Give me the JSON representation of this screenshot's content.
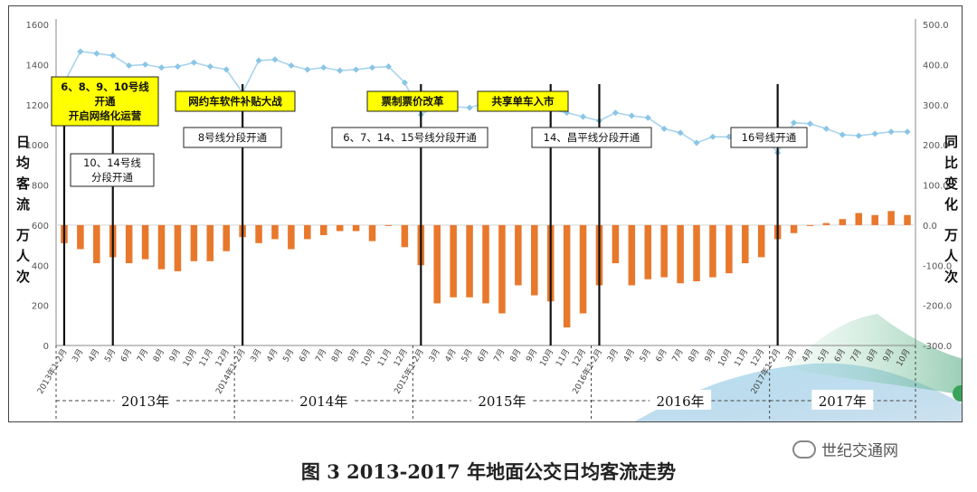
{
  "caption": "图 3 2013-2017 年地面公交日均客流走势",
  "watermark": "世纪交通网",
  "chart_data": {
    "type": "bar+line",
    "ylabel_left": [
      "日",
      "均",
      "客",
      "流",
      "万",
      "人",
      "次"
    ],
    "ylabel_right": [
      "同",
      "比",
      "变",
      "化",
      "万",
      "人",
      "次"
    ],
    "y_left_ticks": [
      "0",
      "200",
      "400",
      "600",
      "800",
      "1000",
      "1200",
      "1400",
      "1600"
    ],
    "y_left_range": [
      0,
      1600
    ],
    "y_right_ticks": [
      "-300.0",
      "-200.0",
      "-100.0",
      "0.0",
      "100.0",
      "200.0",
      "300.0",
      "400.0",
      "500.0"
    ],
    "y_right_range": [
      -300,
      500
    ],
    "x_labels": [
      "2013年1-2月",
      "3月",
      "4月",
      "5月",
      "6月",
      "7月",
      "8月",
      "9月",
      "10月",
      "11月",
      "12月",
      "2014年1-2月",
      "3月",
      "4月",
      "5月",
      "6月",
      "7月",
      "8月",
      "9月",
      "10月",
      "11月",
      "12月",
      "2015年1-2月",
      "3月",
      "4月",
      "5月",
      "6月",
      "7月",
      "8月",
      "9月",
      "10月",
      "11月",
      "12月",
      "2016年1-2月",
      "3月",
      "4月",
      "5月",
      "6月",
      "7月",
      "8月",
      "9月",
      "10月",
      "11月",
      "12月",
      "2017年1-2月",
      "3月",
      "4月",
      "5月",
      "6月",
      "7月",
      "8月",
      "9月",
      "10月"
    ],
    "years": [
      "2013年",
      "2014年",
      "2015年",
      "2016年",
      "2017年"
    ],
    "daily_ridership": [
      1310,
      1465,
      1455,
      1445,
      1395,
      1400,
      1385,
      1390,
      1410,
      1390,
      1375,
      1260,
      1420,
      1425,
      1395,
      1375,
      1385,
      1370,
      1375,
      1385,
      1390,
      1310,
      1150,
      1200,
      1190,
      1185,
      1210,
      1205,
      1190,
      1180,
      1175,
      1160,
      1140,
      1120,
      1160,
      1145,
      1135,
      1080,
      1060,
      1010,
      1040,
      1040,
      1050,
      1060,
      960,
      1110,
      1105,
      1080,
      1050,
      1045,
      1055,
      1065,
      1065
    ],
    "yoy_change": [
      -45,
      -60,
      -95,
      -80,
      -95,
      -85,
      -110,
      -115,
      -90,
      -90,
      -65,
      -30,
      -45,
      -35,
      -60,
      -35,
      -25,
      -15,
      -15,
      -40,
      -2,
      -55,
      -100,
      -195,
      -180,
      -180,
      -195,
      -220,
      -150,
      -175,
      -190,
      -255,
      -220,
      -150,
      -95,
      -150,
      -135,
      -130,
      -145,
      -140,
      -130,
      -120,
      -95,
      -80,
      -35,
      -20,
      -2,
      5,
      15,
      30,
      25,
      35,
      25
    ],
    "annotations": [
      {
        "idx": 0,
        "lines": [
          "6、8、9、10号线",
          "开通",
          "开启网络化运营"
        ],
        "style": "yellow"
      },
      {
        "idx": 3,
        "lines": [
          "10、14号线",
          "分段开通"
        ],
        "style": "white"
      },
      {
        "idx": 11,
        "lines": [
          "网约车软件补贴大战"
        ],
        "style": "yellow"
      },
      {
        "idx": 11,
        "lines": [
          "8号线分段开通"
        ],
        "style": "white"
      },
      {
        "idx": 22,
        "lines": [
          "票制票价改革"
        ],
        "style": "yellow"
      },
      {
        "idx": 22,
        "lines": [
          "6、7、14、15号线分段开通"
        ],
        "style": "white"
      },
      {
        "idx": 30,
        "lines": [
          "共享单车入市"
        ],
        "style": "yellow"
      },
      {
        "idx": 33,
        "lines": [
          "14、昌平线分段开通"
        ],
        "style": "white"
      },
      {
        "idx": 44,
        "lines": [
          "16号线开通"
        ],
        "style": "white"
      }
    ],
    "colors": {
      "bar": "#e8782c",
      "line": "#a9d4ec",
      "marker": "#8ac5e6",
      "callout_yellow": "#ffff00",
      "grid": "#cccccc"
    },
    "grid": false,
    "legend": "none"
  }
}
